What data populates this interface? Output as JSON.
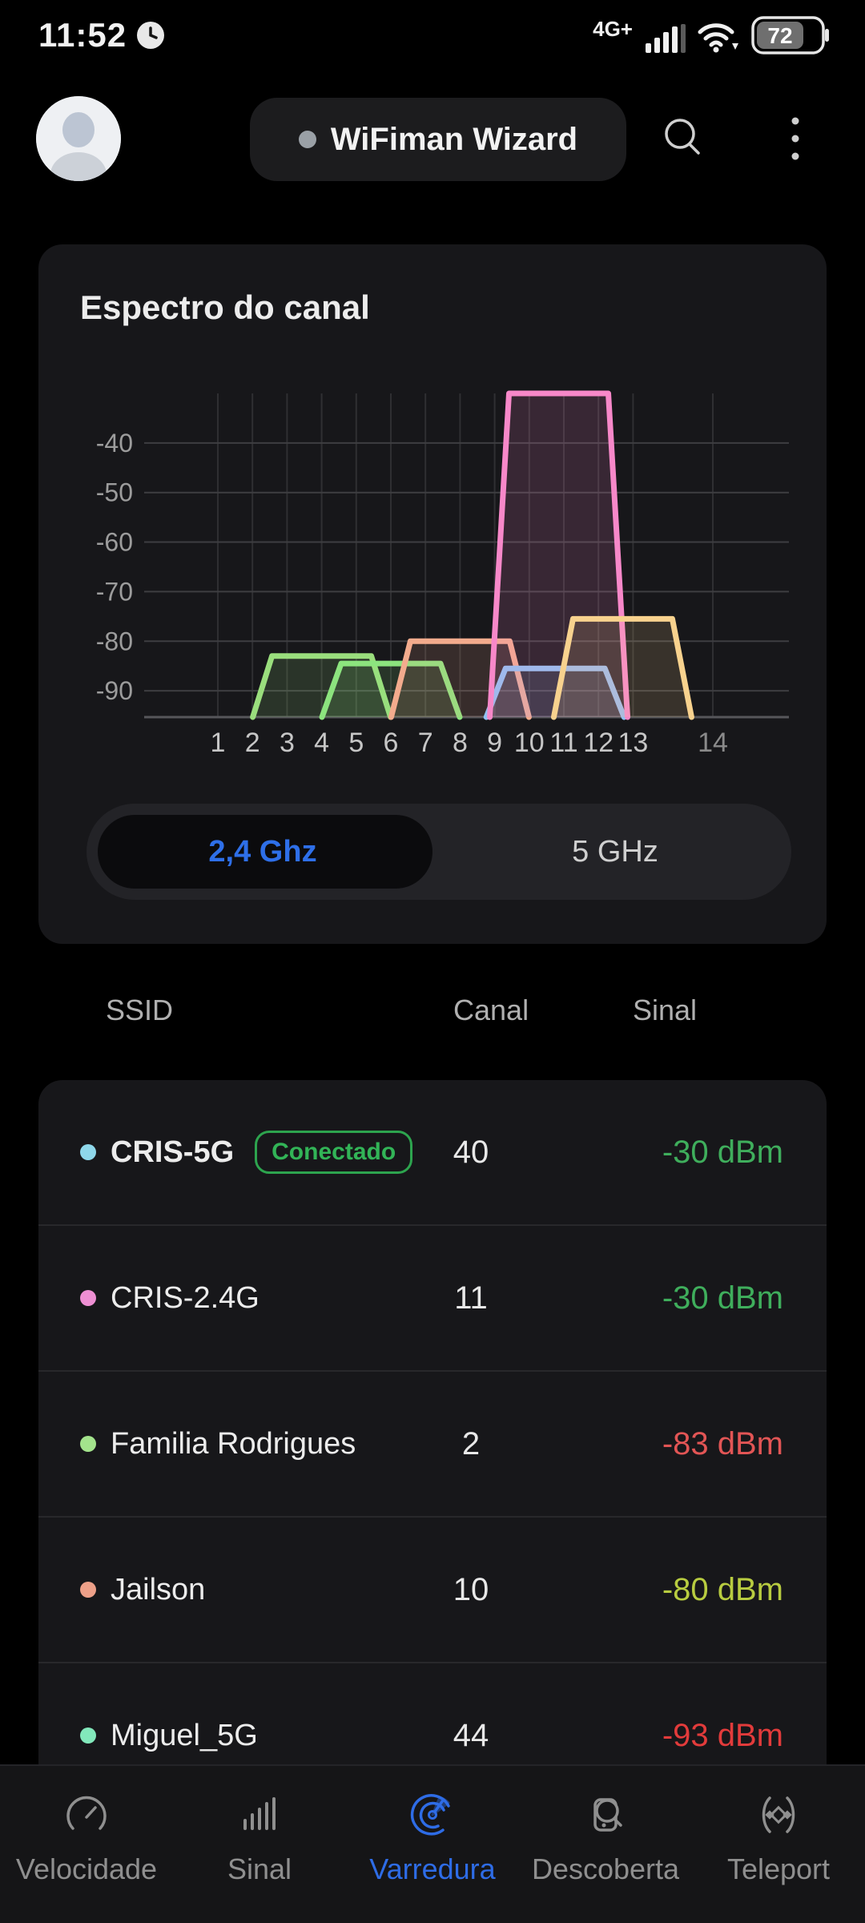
{
  "status_bar": {
    "time": "11:52",
    "network_label": "4G+",
    "battery_percent": "72",
    "icons": [
      "clock-icon",
      "signal-bars-icon",
      "wifi-icon",
      "battery-icon"
    ]
  },
  "header": {
    "wizard_label": "WiFiman Wizard",
    "icons": [
      "avatar",
      "search-icon",
      "kebab-menu-icon"
    ]
  },
  "spectrum_card": {
    "title": "Espectro do canal",
    "band_selector": {
      "selected": "2,4 Ghz",
      "options": [
        "2,4 Ghz",
        "5 GHz"
      ]
    },
    "chart_data": {
      "type": "area",
      "title": "Espectro do canal",
      "xlabel": "",
      "ylabel": "",
      "ylim": [
        -95,
        -30
      ],
      "grid": true,
      "x_ticks": [
        "1",
        "2",
        "3",
        "4",
        "5",
        "6",
        "7",
        "8",
        "9",
        "10",
        "11",
        "12",
        "13",
        "14"
      ],
      "x_tick_muted": "14",
      "y_ticks": [
        -40,
        -50,
        -60,
        -70,
        -80,
        -90
      ],
      "curves": [
        {
          "color": "#9ade7d",
          "center_channel": 4.0,
          "peak_dbm": -83
        },
        {
          "color": "#8ce47e",
          "center_channel": 6.0,
          "peak_dbm": -84.5
        },
        {
          "color": "#f3ab8d",
          "center_channel": 8.0,
          "peak_dbm": -80
        },
        {
          "color": "#90c2f2",
          "center_channel": 10.75,
          "peak_dbm": -85.5
        },
        {
          "color": "#f788c9",
          "center_channel": 10.85,
          "peak_dbm": -30
        },
        {
          "color": "#f8d28e",
          "center_channel": 12.7,
          "peak_dbm": -75.5
        }
      ]
    }
  },
  "table": {
    "headers": [
      "SSID",
      "Canal",
      "Sinal"
    ],
    "rows": [
      {
        "ssid": "CRIS-5G",
        "badge": "Conectado",
        "canal": "40",
        "sinal": "-30 dBm",
        "dot_color": "#8ed7ea",
        "sinal_color": "#3fae5c"
      },
      {
        "ssid": "CRIS-2.4G",
        "badge": null,
        "canal": "11",
        "sinal": "-30 dBm",
        "dot_color": "#ee8fd3",
        "sinal_color": "#3fae5c"
      },
      {
        "ssid": "Familia Rodrigues",
        "badge": null,
        "canal": "2",
        "sinal": "-83 dBm",
        "dot_color": "#a3e38c",
        "sinal_color": "#e25555"
      },
      {
        "ssid": "Jailson",
        "badge": null,
        "canal": "10",
        "sinal": "-80 dBm",
        "dot_color": "#eda089",
        "sinal_color": "#b8cc40"
      },
      {
        "ssid": "Miguel_5G",
        "badge": null,
        "canal": "44",
        "sinal": "-93 dBm",
        "dot_color": "#82e8bb",
        "sinal_color": "#e23b3b"
      }
    ]
  },
  "bottom_nav": {
    "active_color": "#2e6ce6",
    "items": [
      {
        "label": "Velocidade",
        "icon": "speedometer-icon",
        "active": false
      },
      {
        "label": "Sinal",
        "icon": "signal-chart-icon",
        "active": false
      },
      {
        "label": "Varredura",
        "icon": "radar-icon",
        "active": true
      },
      {
        "label": "Descoberta",
        "icon": "device-search-icon",
        "active": false
      },
      {
        "label": "Teleport",
        "icon": "teleport-icon",
        "active": false
      }
    ]
  }
}
